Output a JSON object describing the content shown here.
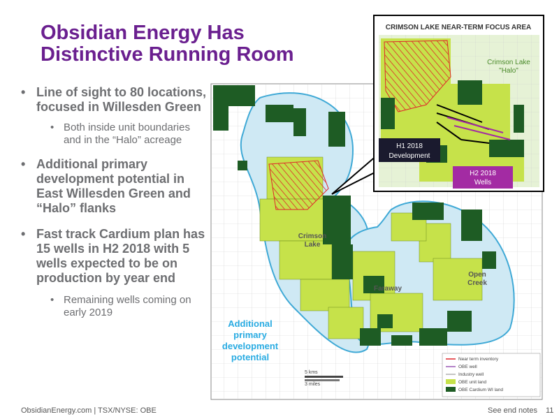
{
  "title_line1": "Obsidian Energy Has",
  "title_line2": "Distinctive Running Room",
  "bullets": [
    {
      "text": "Line of sight to 80 locations, focused in Willesden Green",
      "sub": "Both inside unit boundaries and in the “Halo” acreage"
    },
    {
      "text": "Additional primary development potential in East Willesden Green and “Halo” flanks",
      "sub": ""
    },
    {
      "text": "Fast track Cardium plan has 15 wells in H2 2018 with 5 wells expected to be on production by year end",
      "sub": "Remaining wells coming on early 2019"
    }
  ],
  "map": {
    "labels": {
      "crimson_lake_1": "Crimson",
      "crimson_lake_2": "Lake",
      "faraway": "Faraway",
      "open_creek_1": "Open",
      "open_creek_2": "Creek",
      "additional_1": "Additional",
      "additional_2": "primary",
      "additional_3": "development",
      "additional_4": "potential"
    },
    "scale": {
      "kms": "5 kms",
      "miles": "3 miles"
    },
    "legend": [
      {
        "label": "Near term inventory",
        "color": "#e0262a"
      },
      {
        "label": "OBE well",
        "color": "#9b59b6"
      },
      {
        "label": "Industry well",
        "color": "#b0b0b0"
      },
      {
        "label": "OBE unit land",
        "color": "#c6e24a"
      },
      {
        "label": "OBE Cardium WI land",
        "color": "#1e5c24"
      }
    ],
    "colors": {
      "unit_land": "#c6e24a",
      "wi_land": "#1e5c24",
      "halo": "#cfe9f4",
      "outline": "#3fa9d6",
      "inventory": "#e0262a"
    }
  },
  "inset": {
    "title": "CRIMSON LAKE NEAR-TERM FOCUS AREA",
    "halo_1": "Crimson Lake",
    "halo_2": "\"Halo\"",
    "h1_1": "H1 2018",
    "h1_2": "Development",
    "h2_1": "H2 2018",
    "h2_2": "Wells"
  },
  "footer": "ObsidianEnergy.com | TSX/NYSE: OBE",
  "end_notes": "See end notes",
  "page": "11"
}
